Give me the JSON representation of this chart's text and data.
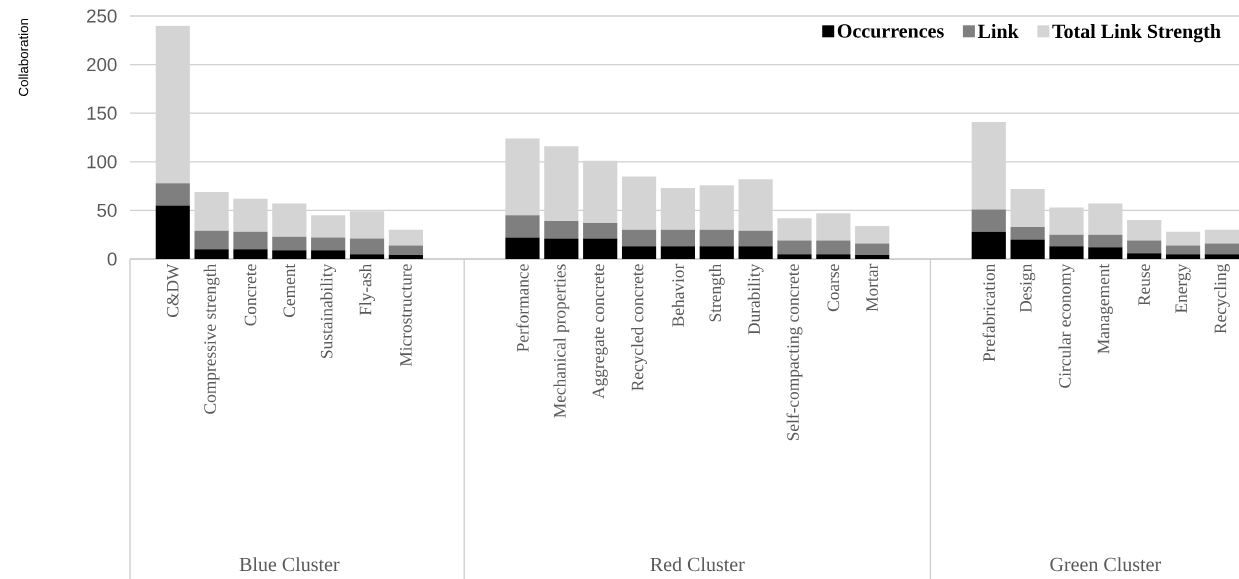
{
  "chart_data": {
    "type": "bar",
    "stacked": true,
    "ylabel": "Collaboration",
    "categories": [
      "C&DW",
      "Compressive strength",
      "Concrete",
      "Cement",
      "Sustainability",
      "Fly-ash",
      "Microstructure",
      null,
      null,
      "Performance",
      "Mechanical properties",
      "Aggregate concrete",
      "Recycled concrete",
      "Behavior",
      "Strength",
      "Durability",
      "Self-compacting concrete",
      "Coarse",
      "Mortar",
      null,
      null,
      "Prefabrication",
      "Design",
      "Circular economy",
      "Management",
      "Reuse",
      "Energy",
      "Recycling"
    ],
    "series": [
      {
        "name": "Occurrences",
        "color": "#000000",
        "values": [
          55,
          10,
          10,
          9,
          9,
          5,
          4,
          null,
          null,
          22,
          21,
          21,
          13,
          13,
          13,
          13,
          5,
          5,
          4,
          null,
          null,
          28,
          20,
          13,
          12,
          6,
          5,
          5
        ]
      },
      {
        "name": "Link",
        "color": "#7f7f7f",
        "values": [
          23,
          19,
          18,
          14,
          13,
          16,
          10,
          null,
          null,
          23,
          18,
          16,
          17,
          17,
          17,
          16,
          14,
          14,
          12,
          null,
          null,
          23,
          13,
          12,
          13,
          13,
          9,
          11
        ]
      },
      {
        "name": "Total Link Strength",
        "color": "#d4d4d4",
        "values": [
          162,
          40,
          34,
          34,
          23,
          28,
          16,
          null,
          null,
          79,
          77,
          64,
          55,
          43,
          46,
          53,
          23,
          28,
          18,
          null,
          null,
          90,
          39,
          28,
          32,
          21,
          14,
          14
        ]
      }
    ],
    "ylim": [
      0,
      250
    ],
    "yticks": [
      0,
      50,
      100,
      150,
      200,
      250
    ],
    "grid": "y",
    "legend": "top right",
    "annotations": [
      "Blue Cluster",
      "Red Cluster",
      "Green Cluster"
    ]
  }
}
